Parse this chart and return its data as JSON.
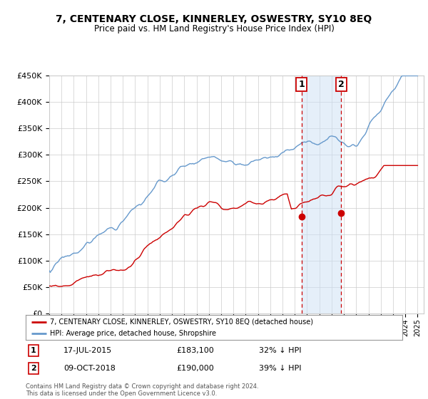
{
  "title": "7, CENTENARY CLOSE, KINNERLEY, OSWESTRY, SY10 8EQ",
  "subtitle": "Price paid vs. HM Land Registry's House Price Index (HPI)",
  "ylim": [
    0,
    450000
  ],
  "yticks": [
    0,
    50000,
    100000,
    150000,
    200000,
    250000,
    300000,
    350000,
    400000,
    450000
  ],
  "ytick_labels": [
    "£0",
    "£50K",
    "£100K",
    "£150K",
    "£200K",
    "£250K",
    "£300K",
    "£350K",
    "£400K",
    "£450K"
  ],
  "sale1_yr": 2015.54,
  "sale1_price": 183100,
  "sale1_date_str": "17-JUL-2015",
  "sale1_price_str": "£183,100",
  "sale1_note": "32% ↓ HPI",
  "sale2_yr": 2018.77,
  "sale2_price": 190000,
  "sale2_date_str": "09-OCT-2018",
  "sale2_price_str": "£190,000",
  "sale2_note": "39% ↓ HPI",
  "legend1": "7, CENTENARY CLOSE, KINNERLEY, OSWESTRY, SY10 8EQ (detached house)",
  "legend2": "HPI: Average price, detached house, Shropshire",
  "footer": "Contains HM Land Registry data © Crown copyright and database right 2024.\nThis data is licensed under the Open Government Licence v3.0.",
  "property_color": "#cc0000",
  "hpi_color": "#6699cc",
  "shade_color": "#cce0f5",
  "bg_color": "#ffffff",
  "grid_color": "#cccccc"
}
